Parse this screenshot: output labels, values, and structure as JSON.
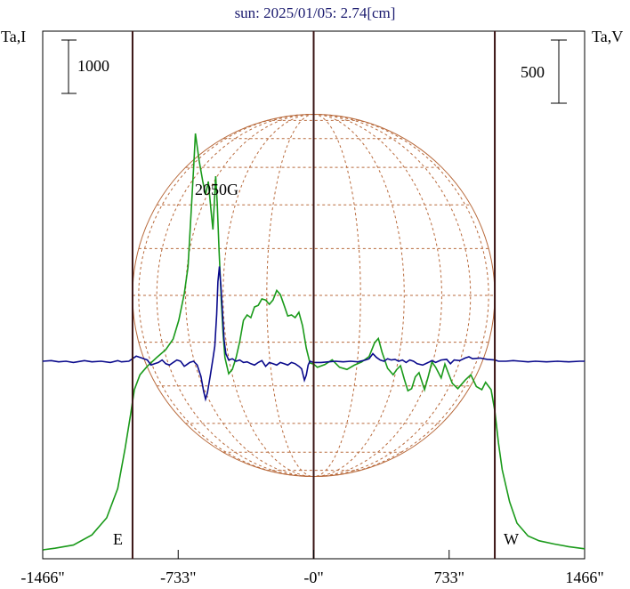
{
  "chart_data": {
    "type": "line",
    "title": "sun: 2025/01/05: 2.74[cm]",
    "left_axis_label": "Ta,I",
    "right_axis_label": "Ta,V",
    "scale_bar_left": "1000",
    "scale_bar_right": "500",
    "annotation": "2050G",
    "limb_labels": {
      "east": "E",
      "west": "W"
    },
    "x_ticks": [
      {
        "value": -1466,
        "label": "-1466\""
      },
      {
        "value": -733,
        "label": "-733\""
      },
      {
        "value": 0,
        "label": "-0\""
      },
      {
        "value": 733,
        "label": "733\""
      },
      {
        "value": 1466,
        "label": "1466\""
      }
    ],
    "xlim": [
      -1466,
      1466
    ],
    "limbs_arcsec": [
      -980,
      980
    ],
    "colors": {
      "stokes_i": "#1a9a1a",
      "stokes_v": "#0a0a8c",
      "grid": "#b86a3c",
      "vline": "#3a1414",
      "title": "#1a1a6e"
    },
    "series": [
      {
        "key": "stokes_i",
        "unit": "K (Ta,I)",
        "points": [
          [
            -1466,
            0
          ],
          [
            -1400,
            30
          ],
          [
            -1300,
            90
          ],
          [
            -1200,
            280
          ],
          [
            -1120,
            600
          ],
          [
            -1060,
            1150
          ],
          [
            -1020,
            1900
          ],
          [
            -990,
            2550
          ],
          [
            -970,
            3000
          ],
          [
            -940,
            3280
          ],
          [
            -900,
            3440
          ],
          [
            -850,
            3600
          ],
          [
            -800,
            3750
          ],
          [
            -760,
            3950
          ],
          [
            -730,
            4300
          ],
          [
            -700,
            4800
          ],
          [
            -680,
            5300
          ],
          [
            -660,
            6500
          ],
          [
            -648,
            7250
          ],
          [
            -640,
            7800
          ],
          [
            -620,
            7300
          ],
          [
            -600,
            6900
          ],
          [
            -585,
            6650
          ],
          [
            -570,
            6900
          ],
          [
            -555,
            6350
          ],
          [
            -545,
            6000
          ],
          [
            -530,
            7000
          ],
          [
            -522,
            6500
          ],
          [
            -512,
            5600
          ],
          [
            -505,
            5100
          ],
          [
            -500,
            4700
          ],
          [
            -490,
            4050
          ],
          [
            -480,
            3600
          ],
          [
            -460,
            3300
          ],
          [
            -440,
            3380
          ],
          [
            -420,
            3600
          ],
          [
            -400,
            3900
          ],
          [
            -380,
            4300
          ],
          [
            -360,
            4400
          ],
          [
            -340,
            4350
          ],
          [
            -320,
            4550
          ],
          [
            -300,
            4580
          ],
          [
            -280,
            4700
          ],
          [
            -260,
            4680
          ],
          [
            -240,
            4600
          ],
          [
            -220,
            4680
          ],
          [
            -200,
            4860
          ],
          [
            -180,
            4780
          ],
          [
            -160,
            4580
          ],
          [
            -140,
            4380
          ],
          [
            -120,
            4400
          ],
          [
            -100,
            4350
          ],
          [
            -80,
            4450
          ],
          [
            -60,
            4200
          ],
          [
            -40,
            3780
          ],
          [
            -20,
            3500
          ],
          [
            0,
            3480
          ],
          [
            20,
            3420
          ],
          [
            60,
            3470
          ],
          [
            100,
            3560
          ],
          [
            140,
            3420
          ],
          [
            180,
            3380
          ],
          [
            220,
            3460
          ],
          [
            260,
            3520
          ],
          [
            300,
            3620
          ],
          [
            330,
            3880
          ],
          [
            350,
            3960
          ],
          [
            370,
            3700
          ],
          [
            400,
            3400
          ],
          [
            430,
            3280
          ],
          [
            450,
            3380
          ],
          [
            470,
            3450
          ],
          [
            490,
            3200
          ],
          [
            510,
            2980
          ],
          [
            530,
            3020
          ],
          [
            550,
            3240
          ],
          [
            570,
            3320
          ],
          [
            600,
            3000
          ],
          [
            620,
            3250
          ],
          [
            640,
            3520
          ],
          [
            660,
            3420
          ],
          [
            690,
            3220
          ],
          [
            710,
            3480
          ],
          [
            730,
            3300
          ],
          [
            750,
            3120
          ],
          [
            780,
            3020
          ],
          [
            820,
            3180
          ],
          [
            850,
            3280
          ],
          [
            880,
            3060
          ],
          [
            910,
            3000
          ],
          [
            930,
            3140
          ],
          [
            960,
            3000
          ],
          [
            980,
            2600
          ],
          [
            1000,
            2000
          ],
          [
            1020,
            1500
          ],
          [
            1060,
            900
          ],
          [
            1100,
            500
          ],
          [
            1160,
            260
          ],
          [
            1220,
            170
          ],
          [
            1300,
            110
          ],
          [
            1380,
            60
          ],
          [
            1466,
            20
          ]
        ]
      },
      {
        "key": "stokes_v",
        "unit": "K (Ta,V)",
        "points": [
          [
            -1466,
            0
          ],
          [
            -1420,
            5
          ],
          [
            -1380,
            -5
          ],
          [
            -1340,
            0
          ],
          [
            -1300,
            -10
          ],
          [
            -1240,
            5
          ],
          [
            -1200,
            -5
          ],
          [
            -1150,
            0
          ],
          [
            -1100,
            -10
          ],
          [
            -1060,
            5
          ],
          [
            -1040,
            -5
          ],
          [
            -1000,
            0
          ],
          [
            -980,
            20
          ],
          [
            -960,
            40
          ],
          [
            -930,
            25
          ],
          [
            -900,
            10
          ],
          [
            -880,
            -30
          ],
          [
            -860,
            -20
          ],
          [
            -840,
            -10
          ],
          [
            -820,
            10
          ],
          [
            -800,
            -20
          ],
          [
            -780,
            -30
          ],
          [
            -760,
            -10
          ],
          [
            -740,
            10
          ],
          [
            -720,
            0
          ],
          [
            -700,
            -40
          ],
          [
            -690,
            -30
          ],
          [
            -670,
            -10
          ],
          [
            -650,
            0
          ],
          [
            -630,
            -30
          ],
          [
            -610,
            -120
          ],
          [
            -595,
            -240
          ],
          [
            -585,
            -300
          ],
          [
            -575,
            -250
          ],
          [
            -560,
            -120
          ],
          [
            -545,
            20
          ],
          [
            -535,
            120
          ],
          [
            -525,
            370
          ],
          [
            -518,
            630
          ],
          [
            -510,
            750
          ],
          [
            -500,
            560
          ],
          [
            -492,
            350
          ],
          [
            -485,
            170
          ],
          [
            -475,
            60
          ],
          [
            -460,
            10
          ],
          [
            -440,
            20
          ],
          [
            -420,
            0
          ],
          [
            -400,
            10
          ],
          [
            -380,
            -10
          ],
          [
            -360,
            -5
          ],
          [
            -340,
            -20
          ],
          [
            -320,
            -30
          ],
          [
            -300,
            -10
          ],
          [
            -280,
            5
          ],
          [
            -260,
            -40
          ],
          [
            -240,
            -10
          ],
          [
            -220,
            -20
          ],
          [
            -200,
            -30
          ],
          [
            -180,
            -10
          ],
          [
            -160,
            -20
          ],
          [
            -140,
            -30
          ],
          [
            -120,
            -10
          ],
          [
            -100,
            -20
          ],
          [
            -80,
            -40
          ],
          [
            -65,
            -60
          ],
          [
            -50,
            -150
          ],
          [
            -40,
            -110
          ],
          [
            -30,
            -30
          ],
          [
            -20,
            0
          ],
          [
            0,
            -10
          ],
          [
            40,
            -10
          ],
          [
            80,
            -5
          ],
          [
            120,
            0
          ],
          [
            160,
            -5
          ],
          [
            200,
            0
          ],
          [
            240,
            -5
          ],
          [
            280,
            10
          ],
          [
            300,
            20
          ],
          [
            320,
            60
          ],
          [
            340,
            30
          ],
          [
            360,
            10
          ],
          [
            380,
            0
          ],
          [
            400,
            20
          ],
          [
            420,
            10
          ],
          [
            440,
            15
          ],
          [
            460,
            0
          ],
          [
            480,
            10
          ],
          [
            500,
            -10
          ],
          [
            520,
            10
          ],
          [
            540,
            0
          ],
          [
            560,
            -20
          ],
          [
            590,
            -30
          ],
          [
            620,
            -10
          ],
          [
            640,
            5
          ],
          [
            660,
            -10
          ],
          [
            690,
            10
          ],
          [
            720,
            15
          ],
          [
            740,
            -20
          ],
          [
            760,
            10
          ],
          [
            790,
            5
          ],
          [
            820,
            25
          ],
          [
            840,
            35
          ],
          [
            860,
            20
          ],
          [
            900,
            25
          ],
          [
            940,
            15
          ],
          [
            980,
            10
          ],
          [
            1000,
            0
          ],
          [
            1040,
            0
          ],
          [
            1080,
            5
          ],
          [
            1120,
            0
          ],
          [
            1160,
            -5
          ],
          [
            1200,
            0
          ],
          [
            1260,
            -5
          ],
          [
            1320,
            0
          ],
          [
            1380,
            -5
          ],
          [
            1440,
            0
          ],
          [
            1466,
            0
          ]
        ]
      }
    ],
    "scales": {
      "stokes_i_bar_K": 1000,
      "stokes_v_bar_K": 500
    }
  }
}
